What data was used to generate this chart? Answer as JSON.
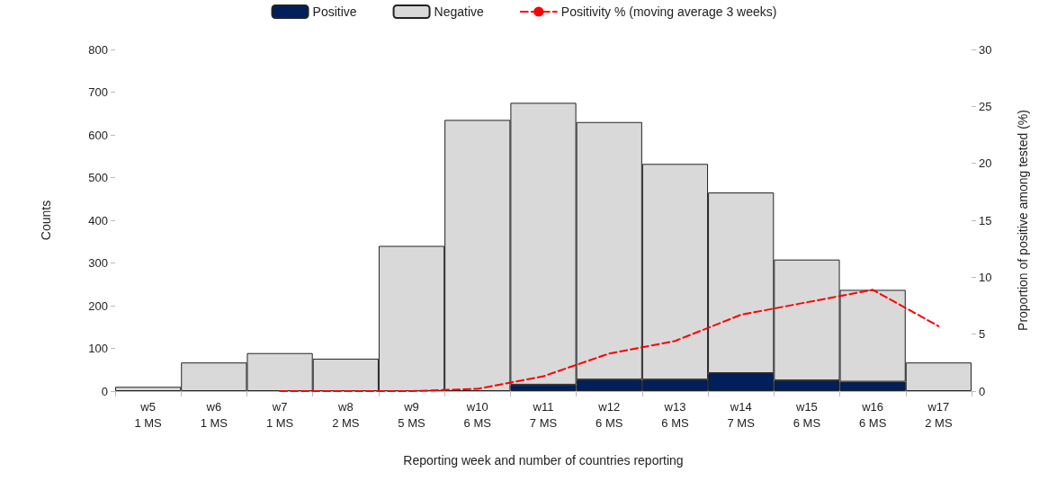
{
  "chart_data": {
    "type": "bar",
    "stacked": true,
    "xlabel": "Reporting week and number of countries reporting",
    "ylabel": "Counts",
    "y2label": "Proportion of positive among tested (%)",
    "categories": [
      "w5\n1 MS",
      "w6\n1 MS",
      "w7\n1 MS",
      "w8\n2 MS",
      "w9\n5 MS",
      "w10\n6 MS",
      "w11\n7 MS",
      "w12\n6 MS",
      "w13\n6 MS",
      "w14\n7 MS",
      "w15\n6 MS",
      "w16\n6 MS",
      "w17\n2 MS"
    ],
    "series": [
      {
        "name": "Positive",
        "color": "#001f5b",
        "values": [
          null,
          null,
          null,
          null,
          null,
          null,
          15,
          27,
          27,
          42,
          25,
          22,
          null
        ]
      },
      {
        "name": "Negative",
        "color": "#d9d9d9",
        "values": [
          10,
          67,
          89,
          76,
          340,
          635,
          660,
          603,
          505,
          423,
          283,
          215,
          67
        ]
      },
      {
        "name": "Positivity % (moving average 3 weeks)",
        "type": "line",
        "axis": "y2",
        "color": "#ff0000",
        "line_style": "dashed",
        "marker": "none",
        "values": [
          null,
          null,
          0,
          0,
          0,
          0.2,
          1.3,
          3.3,
          4.4,
          6.7,
          7.8,
          8.9,
          5.7
        ]
      }
    ],
    "ylim": [
      0,
      800
    ],
    "yticks": [
      0,
      100,
      200,
      300,
      400,
      500,
      600,
      700,
      800
    ],
    "y2lim": [
      0,
      30
    ],
    "y2ticks": [
      0,
      5,
      10,
      15,
      20,
      25,
      30
    ],
    "grid": false,
    "legend": "top"
  }
}
